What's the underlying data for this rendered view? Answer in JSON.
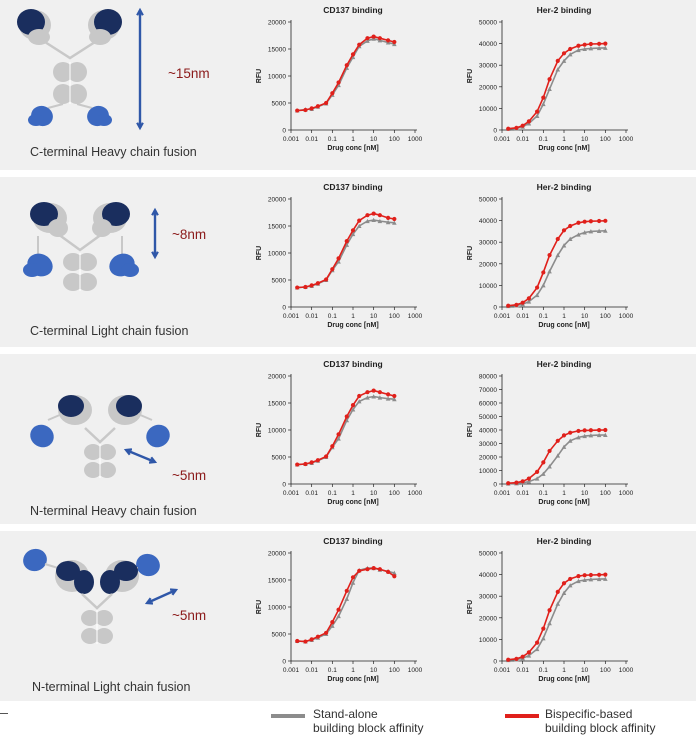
{
  "colors": {
    "standalone": "#8c8c8c",
    "bispecific": "#e0201b",
    "antibody_gray": "#c8c8c8",
    "domain_navy": "#1a2e5e",
    "domain_blue": "#3b68c0",
    "arrow": "#2f57a8",
    "distance_text": "#8b1a1a"
  },
  "x_ticks": [
    "0.001",
    "0.01",
    "0.1",
    "1",
    "10",
    "100",
    "1000"
  ],
  "panels": [
    {
      "label": "C-terminal Heavy chain fusion",
      "distance": "~15nm",
      "arrow_icon": "vertical-double-arrow-icon",
      "diagram_icon": "antibody-c-terminal-heavy-chain-fusion-icon"
    },
    {
      "label": "C-terminal Light chain fusion",
      "distance": "~8nm",
      "arrow_icon": "vertical-double-arrow-icon",
      "diagram_icon": "antibody-c-terminal-light-chain-fusion-icon"
    },
    {
      "label": "N-terminal Heavy chain fusion",
      "distance": "~5nm",
      "arrow_icon": "diagonal-double-arrow-icon",
      "diagram_icon": "antibody-n-terminal-heavy-chain-fusion-icon"
    },
    {
      "label": "N-terminal Light chain fusion",
      "distance": "~5nm",
      "arrow_icon": "diagonal-double-arrow-icon",
      "diagram_icon": "antibody-n-terminal-light-chain-fusion-icon"
    }
  ],
  "legend": {
    "standalone_line1": "Stand-alone",
    "standalone_line2": "building block affinity",
    "bispecific_line1": "Bispecific-based",
    "bispecific_line2": "building block affinity"
  },
  "chart_data": [
    {
      "type": "line",
      "title": "CD137 binding",
      "xlabel": "Drug conc [nM]",
      "ylabel": "RFU",
      "x_scale": "log",
      "xlim": [
        0.001,
        1000
      ],
      "ylim": [
        0,
        20000
      ],
      "yticks": [
        "0",
        "5000",
        "10000",
        "15000",
        "20000"
      ],
      "x": [
        0.002,
        0.005,
        0.01,
        0.02,
        0.05,
        0.1,
        0.2,
        0.5,
        1,
        2,
        5,
        10,
        20,
        50,
        100
      ],
      "series": [
        {
          "name": "Stand-alone building block affinity",
          "values": [
            3600,
            3800,
            3900,
            4300,
            4900,
            6500,
            8300,
            11500,
            13500,
            15500,
            16500,
            16900,
            16600,
            16200,
            15900
          ]
        },
        {
          "name": "Bispecific-based building block affinity",
          "values": [
            3600,
            3700,
            4000,
            4400,
            5000,
            6800,
            8800,
            12000,
            14000,
            15800,
            17000,
            17300,
            17000,
            16600,
            16300
          ]
        }
      ]
    },
    {
      "type": "line",
      "title": "Her-2 binding",
      "xlabel": "Drug conc [nM]",
      "ylabel": "RFU",
      "x_scale": "log",
      "xlim": [
        0.001,
        1000
      ],
      "ylim": [
        0,
        50000
      ],
      "yticks": [
        "0",
        "10000",
        "20000",
        "30000",
        "40000",
        "50000"
      ],
      "x": [
        0.002,
        0.005,
        0.01,
        0.02,
        0.05,
        0.1,
        0.2,
        0.5,
        1,
        2,
        5,
        10,
        20,
        50,
        100
      ],
      "series": [
        {
          "name": "Stand-alone building block affinity",
          "values": [
            500,
            800,
            1500,
            3000,
            6500,
            12000,
            19000,
            28000,
            32000,
            35000,
            37000,
            37500,
            37800,
            37900,
            38000
          ]
        },
        {
          "name": "Bispecific-based building block affinity",
          "values": [
            600,
            1000,
            2000,
            4000,
            8500,
            15000,
            23500,
            32000,
            35500,
            37500,
            39000,
            39500,
            39800,
            39900,
            40000
          ]
        }
      ]
    },
    {
      "type": "line",
      "title": "CD137 binding",
      "xlabel": "Drug conc [nM]",
      "ylabel": "RFU",
      "x_scale": "log",
      "xlim": [
        0.001,
        1000
      ],
      "ylim": [
        0,
        20000
      ],
      "yticks": [
        "0",
        "5000",
        "10000",
        "15000",
        "20000"
      ],
      "x": [
        0.002,
        0.005,
        0.01,
        0.02,
        0.05,
        0.1,
        0.2,
        0.5,
        1,
        2,
        5,
        10,
        20,
        50,
        100
      ],
      "series": [
        {
          "name": "Stand-alone building block affinity",
          "values": [
            3600,
            3700,
            3900,
            4300,
            5000,
            6800,
            8400,
            11500,
            13500,
            15000,
            15900,
            16100,
            15900,
            15700,
            15600
          ]
        },
        {
          "name": "Bispecific-based building block affinity",
          "values": [
            3600,
            3700,
            4000,
            4400,
            5100,
            7000,
            9000,
            12200,
            14200,
            16000,
            17000,
            17300,
            17000,
            16500,
            16300
          ]
        }
      ]
    },
    {
      "type": "line",
      "title": "Her-2 binding",
      "xlabel": "Drug conc [nM]",
      "ylabel": "RFU",
      "x_scale": "log",
      "xlim": [
        0.001,
        1000
      ],
      "ylim": [
        0,
        50000
      ],
      "yticks": [
        "0",
        "10000",
        "20000",
        "30000",
        "40000",
        "50000"
      ],
      "x": [
        0.002,
        0.005,
        0.01,
        0.02,
        0.05,
        0.1,
        0.2,
        0.5,
        1,
        2,
        5,
        10,
        20,
        50,
        100
      ],
      "series": [
        {
          "name": "Stand-alone building block affinity",
          "values": [
            400,
            700,
            1300,
            2500,
            5500,
            10000,
            16500,
            24000,
            28500,
            31500,
            33500,
            34500,
            35000,
            35200,
            35300
          ]
        },
        {
          "name": "Bispecific-based building block affinity",
          "values": [
            600,
            1000,
            2000,
            4000,
            9000,
            16000,
            24000,
            31500,
            35500,
            37500,
            39000,
            39500,
            39700,
            39800,
            39900
          ]
        }
      ]
    },
    {
      "type": "line",
      "title": "CD137 binding",
      "xlabel": "Drug conc [nM]",
      "ylabel": "RFU",
      "x_scale": "log",
      "xlim": [
        0.001,
        1000
      ],
      "ylim": [
        0,
        20000
      ],
      "yticks": [
        "0",
        "5000",
        "10000",
        "15000",
        "20000"
      ],
      "x": [
        0.002,
        0.005,
        0.01,
        0.02,
        0.05,
        0.1,
        0.2,
        0.5,
        1,
        2,
        5,
        10,
        20,
        50,
        100
      ],
      "series": [
        {
          "name": "Stand-alone building block affinity",
          "values": [
            3600,
            3700,
            3900,
            4300,
            5000,
            6800,
            8400,
            11800,
            13800,
            15300,
            16000,
            16200,
            16000,
            15800,
            15700
          ]
        },
        {
          "name": "Bispecific-based building block affinity",
          "values": [
            3600,
            3700,
            4000,
            4400,
            5100,
            7000,
            9200,
            12500,
            14600,
            16300,
            17000,
            17300,
            17000,
            16600,
            16300
          ]
        }
      ]
    },
    {
      "type": "line",
      "title": "Her-2 binding",
      "xlabel": "Drug conc [nM]",
      "ylabel": "RFU",
      "x_scale": "log",
      "xlim": [
        0.001,
        1000
      ],
      "ylim": [
        0,
        80000
      ],
      "yticks": [
        "0",
        "10000",
        "20000",
        "30000",
        "40000",
        "50000",
        "60000",
        "70000",
        "80000"
      ],
      "x": [
        0.002,
        0.005,
        0.01,
        0.02,
        0.05,
        0.1,
        0.2,
        0.5,
        1,
        2,
        5,
        10,
        20,
        50,
        100
      ],
      "series": [
        {
          "name": "Stand-alone building block affinity",
          "values": [
            300,
            500,
            900,
            1800,
            4000,
            7500,
            13000,
            21000,
            27500,
            32000,
            34500,
            35500,
            36000,
            36200,
            36300
          ]
        },
        {
          "name": "Bispecific-based building block affinity",
          "values": [
            600,
            1000,
            2000,
            4000,
            9000,
            16000,
            24500,
            32000,
            36000,
            38000,
            39300,
            39700,
            39800,
            39900,
            40000
          ]
        }
      ]
    },
    {
      "type": "line",
      "title": "CD137 binding",
      "xlabel": "Drug conc [nM]",
      "ylabel": "RFU",
      "x_scale": "log",
      "xlim": [
        0.001,
        1000
      ],
      "ylim": [
        0,
        20000
      ],
      "yticks": [
        "0",
        "5000",
        "10000",
        "15000",
        "20000"
      ],
      "x": [
        0.002,
        0.005,
        0.01,
        0.02,
        0.05,
        0.1,
        0.2,
        0.5,
        1,
        2,
        5,
        10,
        20,
        50,
        100
      ],
      "series": [
        {
          "name": "Stand-alone building block affinity",
          "values": [
            3700,
            3600,
            3900,
            4300,
            5000,
            6500,
            8300,
            11500,
            14500,
            16800,
            17200,
            17200,
            16900,
            16600,
            16300
          ]
        },
        {
          "name": "Bispecific-based building block affinity",
          "values": [
            3700,
            3600,
            4000,
            4500,
            5200,
            7200,
            9500,
            13000,
            15500,
            16700,
            17000,
            17200,
            17000,
            16500,
            15700
          ]
        }
      ]
    },
    {
      "type": "line",
      "title": "Her-2 binding",
      "xlabel": "Drug conc [nM]",
      "ylabel": "RFU",
      "x_scale": "log",
      "xlim": [
        0.001,
        1000
      ],
      "ylim": [
        0,
        50000
      ],
      "yticks": [
        "0",
        "10000",
        "20000",
        "30000",
        "40000",
        "50000"
      ],
      "x": [
        0.002,
        0.005,
        0.01,
        0.02,
        0.05,
        0.1,
        0.2,
        0.5,
        1,
        2,
        5,
        10,
        20,
        50,
        100
      ],
      "series": [
        {
          "name": "Stand-alone building block affinity",
          "values": [
            400,
            700,
            1300,
            2500,
            5500,
            10500,
            17500,
            26500,
            31500,
            35000,
            37000,
            37500,
            37800,
            37900,
            38000
          ]
        },
        {
          "name": "Bispecific-based building block affinity",
          "values": [
            600,
            1000,
            2000,
            4000,
            8500,
            15000,
            23500,
            32000,
            36000,
            38000,
            39300,
            39700,
            39800,
            39900,
            40000
          ]
        }
      ]
    }
  ]
}
